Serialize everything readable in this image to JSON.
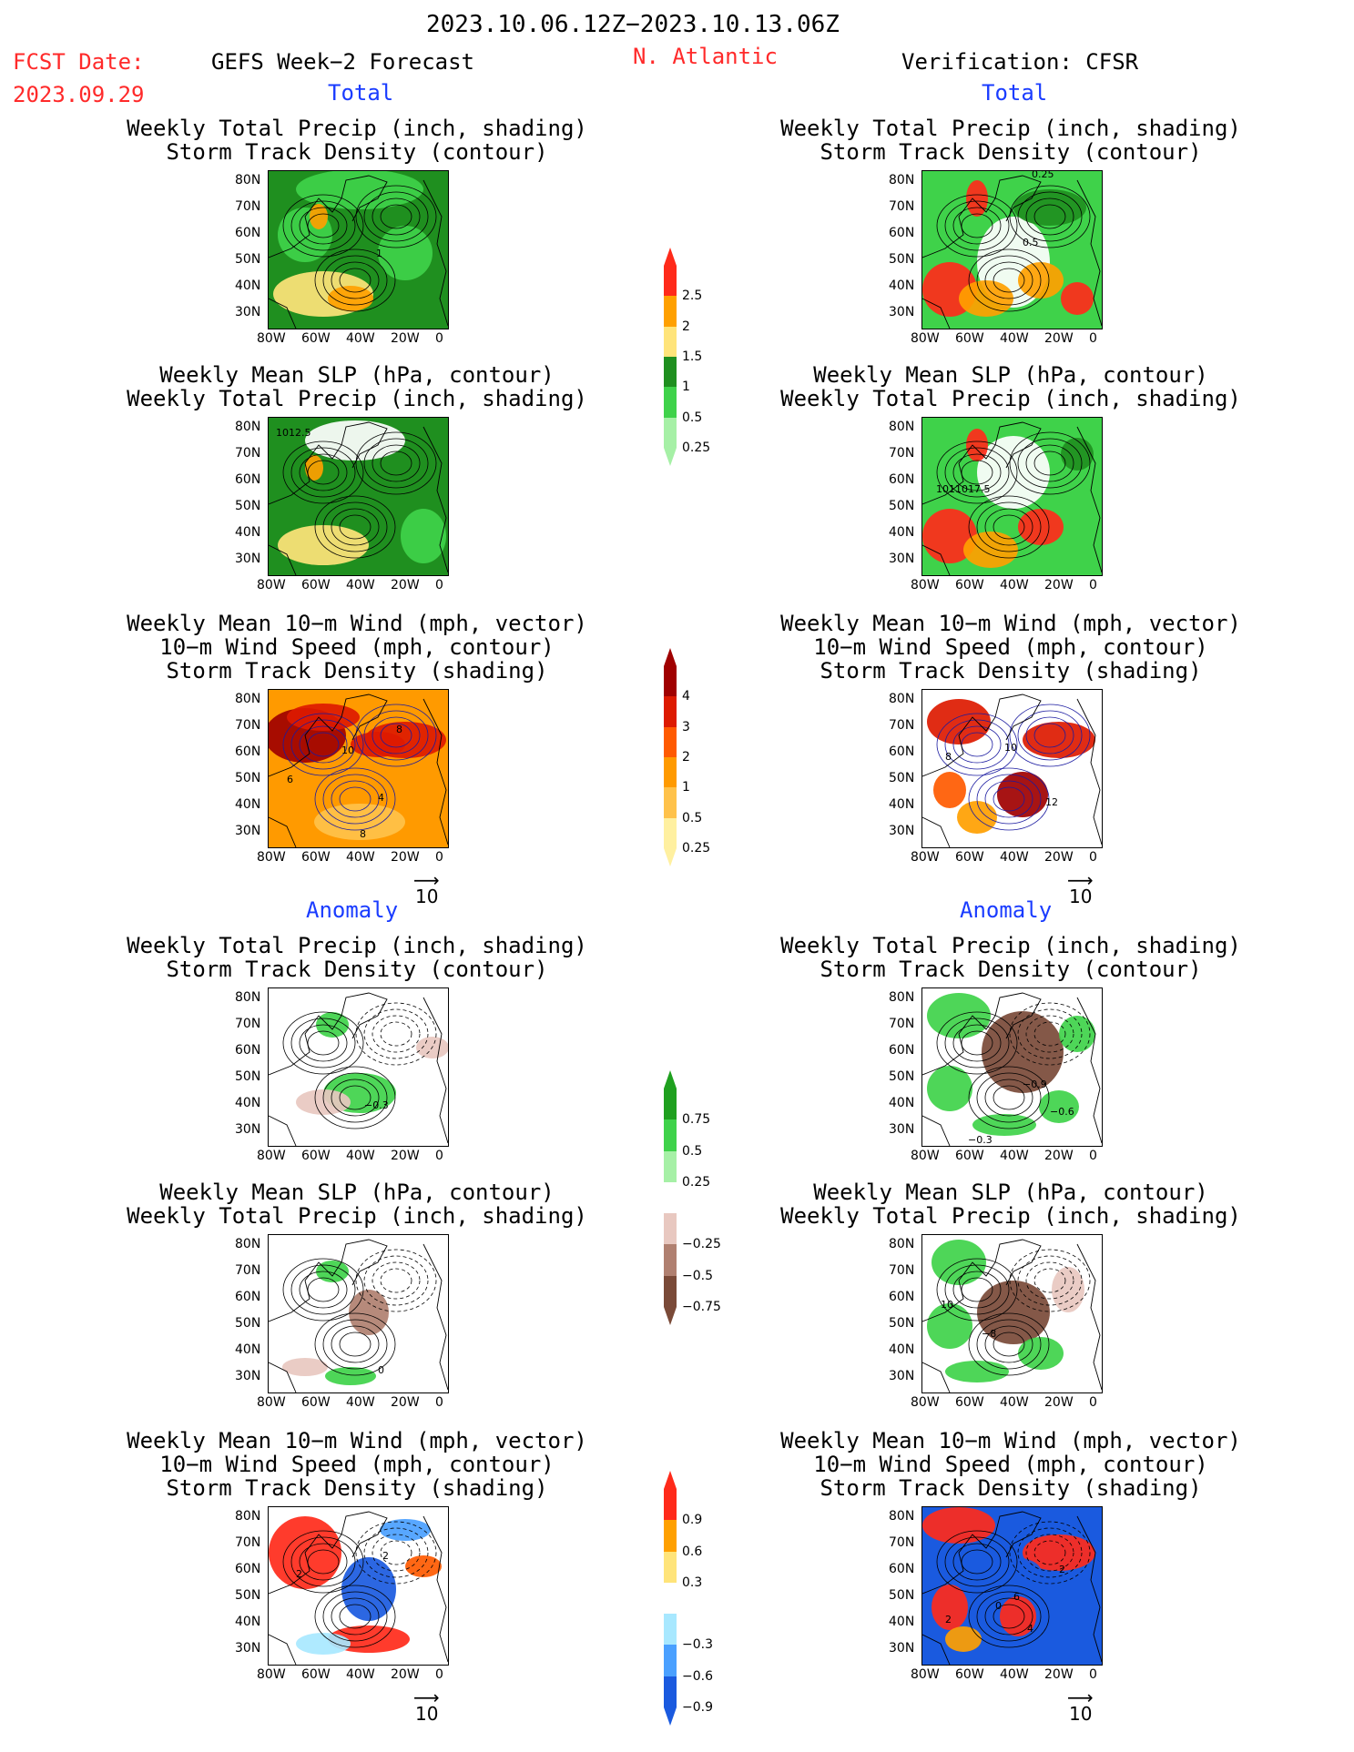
{
  "header": {
    "period": "2023.10.06.12Z−2023.10.13.06Z",
    "fcst_label": "FCST Date:",
    "fcst_date": "2023.09.29",
    "forecast_title": "GEFS Week−2 Forecast",
    "region": "N. Atlantic",
    "verification": "Verification: CFSR"
  },
  "sections": {
    "total": "Total",
    "anomaly": "Anomaly"
  },
  "titles": {
    "precip_track": [
      "Weekly Total Precip (inch, shading)",
      "Storm Track Density (contour)"
    ],
    "slp_precip": [
      "Weekly Mean SLP (hPa, contour)",
      "Weekly Total Precip (inch, shading)"
    ],
    "wind_track": [
      "Weekly Mean 10−m Wind (mph, vector)",
      "10−m Wind Speed (mph, contour)",
      "Storm Track Density (shading)"
    ]
  },
  "axes": {
    "lat": [
      "80N",
      "70N",
      "60N",
      "50N",
      "40N",
      "30N"
    ],
    "lon": [
      "80W",
      "60W",
      "40W",
      "20W",
      "0"
    ]
  },
  "vector_scale": "10",
  "colorbars": {
    "precip_total": [
      {
        "label": "2.5",
        "color": "#ff2a1a"
      },
      {
        "label": "2",
        "color": "#ffa000"
      },
      {
        "label": "1.5",
        "color": "#ffe47a"
      },
      {
        "label": "1",
        "color": "#1f8f1f"
      },
      {
        "label": "0.5",
        "color": "#3fd24a"
      },
      {
        "label": "0.25",
        "color": "#a6f0a6"
      }
    ],
    "track_total": [
      {
        "label": "4",
        "color": "#a00000"
      },
      {
        "label": "3",
        "color": "#dd1a00"
      },
      {
        "label": "2",
        "color": "#ff5a00"
      },
      {
        "label": "1",
        "color": "#ff9a00"
      },
      {
        "label": "0.5",
        "color": "#ffc24a"
      },
      {
        "label": "0.25",
        "color": "#fff0a0"
      }
    ],
    "precip_anom": [
      {
        "label": "0.75",
        "color": "#1fa01f"
      },
      {
        "label": "0.5",
        "color": "#3fd24a"
      },
      {
        "label": "0.25",
        "color": "#a6f0a6"
      },
      {
        "label": "",
        "color": "#ffffff"
      },
      {
        "label": "−0.25",
        "color": "#e8c8c0"
      },
      {
        "label": "−0.5",
        "color": "#b08070"
      },
      {
        "label": "−0.75",
        "color": "#7a4a38"
      }
    ],
    "track_anom": [
      {
        "label": "0.9",
        "color": "#ff2a1a"
      },
      {
        "label": "0.6",
        "color": "#ffa000"
      },
      {
        "label": "0.3",
        "color": "#ffe47a"
      },
      {
        "label": "",
        "color": "#ffffff"
      },
      {
        "label": "−0.3",
        "color": "#a8e8ff"
      },
      {
        "label": "−0.6",
        "color": "#4aa0ff"
      },
      {
        "label": "−0.9",
        "color": "#1a5adf"
      }
    ]
  },
  "contour_labels": {
    "f_pt": "1",
    "o_pt": [
      "0.25",
      "0.5"
    ],
    "f_sp": "1012.5",
    "o_sp": [
      "1011017.5"
    ],
    "f_wt": [
      "10",
      "6",
      "8",
      "4",
      "8"
    ],
    "o_wt": [
      "10",
      "8",
      "12"
    ],
    "fa_pt": "−0.3",
    "oa_pt": [
      "−0.9",
      "−0.6",
      "−0.3"
    ],
    "fa_sp": "0",
    "oa_sp": [
      "10",
      "−8"
    ],
    "fa_wt": [
      "2",
      "2"
    ],
    "oa_wt": [
      "2",
      "6",
      "0",
      "4",
      "2"
    ]
  }
}
